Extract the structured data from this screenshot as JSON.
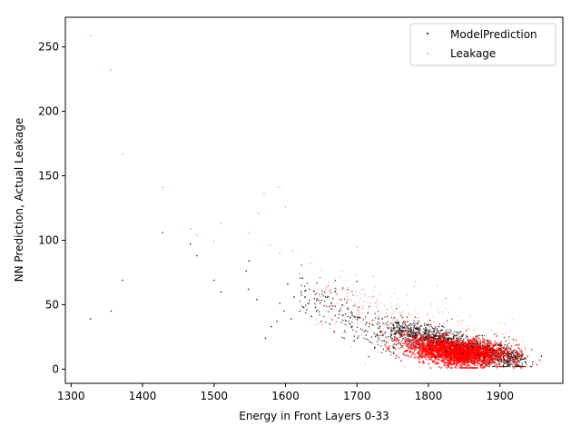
{
  "chart_data": {
    "type": "scatter",
    "title": "",
    "xlabel": "Energy in Front Layers 0-33",
    "ylabel": "NN Prediction, Actual Leakage",
    "xlim": [
      1292,
      1988
    ],
    "ylim": [
      -11,
      273
    ],
    "xticks": [
      1300,
      1400,
      1500,
      1600,
      1700,
      1800,
      1900
    ],
    "yticks": [
      0,
      50,
      100,
      150,
      200,
      250
    ],
    "grid": false,
    "legend_position": "top-right",
    "series": [
      {
        "name": "ModelPrediction",
        "color": "#000000",
        "marker": "dot",
        "sample_points": [
          [
            1327,
            39
          ],
          [
            1356,
            45
          ],
          [
            1372,
            69
          ],
          [
            1428,
            106
          ],
          [
            1467,
            97
          ],
          [
            1476,
            88
          ],
          [
            1500,
            69
          ],
          [
            1510,
            60
          ],
          [
            1545,
            76
          ],
          [
            1548,
            62
          ],
          [
            1549,
            84
          ],
          [
            1560,
            54
          ],
          [
            1572,
            24
          ],
          [
            1580,
            33
          ],
          [
            1588,
            37
          ],
          [
            1592,
            51
          ],
          [
            1598,
            45
          ],
          [
            1603,
            66
          ],
          [
            1608,
            39
          ],
          [
            1612,
            56
          ],
          [
            1620,
            45
          ],
          [
            1628,
            61
          ],
          [
            1636,
            41
          ],
          [
            1642,
            48
          ],
          [
            1650,
            37
          ],
          [
            1656,
            56
          ],
          [
            1662,
            35
          ],
          [
            1668,
            29
          ],
          [
            1675,
            45
          ],
          [
            1682,
            24
          ],
          [
            1690,
            35
          ],
          [
            1696,
            22
          ],
          [
            1700,
            68
          ],
          [
            1704,
            40
          ],
          [
            1712,
            30
          ],
          [
            1718,
            21
          ],
          [
            1725,
            17
          ],
          [
            1732,
            33
          ],
          [
            1738,
            22
          ],
          [
            1745,
            14
          ],
          [
            1752,
            27
          ],
          [
            1758,
            20
          ],
          [
            1765,
            12
          ],
          [
            1772,
            26
          ],
          [
            1780,
            18
          ],
          [
            1788,
            11
          ],
          [
            1795,
            23
          ],
          [
            1802,
            16
          ],
          [
            1810,
            9
          ],
          [
            1818,
            21
          ],
          [
            1825,
            14
          ],
          [
            1832,
            8
          ],
          [
            1840,
            19
          ],
          [
            1848,
            12
          ],
          [
            1855,
            7
          ],
          [
            1862,
            17
          ],
          [
            1870,
            11
          ],
          [
            1878,
            9
          ],
          [
            1886,
            15
          ],
          [
            1894,
            10
          ],
          [
            1902,
            8
          ],
          [
            1910,
            12
          ],
          [
            1918,
            9
          ],
          [
            1935,
            8
          ],
          [
            1958,
            10
          ]
        ]
      },
      {
        "name": "Leakage",
        "color": "#ff0000",
        "marker": "dot",
        "sample_points": [
          [
            1327,
            259
          ],
          [
            1356,
            232
          ],
          [
            1372,
            167
          ],
          [
            1428,
            141
          ],
          [
            1467,
            109
          ],
          [
            1476,
            104
          ],
          [
            1500,
            99
          ],
          [
            1510,
            113
          ],
          [
            1549,
            106
          ],
          [
            1562,
            121
          ],
          [
            1570,
            136
          ],
          [
            1590,
            141
          ],
          [
            1600,
            126
          ],
          [
            1578,
            96
          ],
          [
            1592,
            90
          ],
          [
            1610,
            92
          ],
          [
            1620,
            74
          ],
          [
            1635,
            82
          ],
          [
            1648,
            71
          ],
          [
            1660,
            65
          ],
          [
            1672,
            58
          ],
          [
            1680,
            62
          ],
          [
            1688,
            54
          ],
          [
            1695,
            49
          ],
          [
            1700,
            95
          ],
          [
            1708,
            47
          ],
          [
            1715,
            43
          ],
          [
            1722,
            38
          ],
          [
            1730,
            41
          ],
          [
            1738,
            35
          ],
          [
            1745,
            32
          ],
          [
            1752,
            36
          ],
          [
            1760,
            29
          ],
          [
            1768,
            27
          ],
          [
            1776,
            31
          ],
          [
            1782,
            68
          ],
          [
            1790,
            24
          ],
          [
            1798,
            22
          ],
          [
            1806,
            25
          ],
          [
            1814,
            20
          ],
          [
            1822,
            18
          ],
          [
            1830,
            21
          ],
          [
            1838,
            17
          ],
          [
            1846,
            15
          ],
          [
            1854,
            18
          ],
          [
            1862,
            14
          ],
          [
            1870,
            16
          ],
          [
            1878,
            12
          ],
          [
            1886,
            13
          ],
          [
            1894,
            11
          ],
          [
            1902,
            10
          ],
          [
            1912,
            9
          ],
          [
            1925,
            12
          ]
        ]
      }
    ]
  }
}
